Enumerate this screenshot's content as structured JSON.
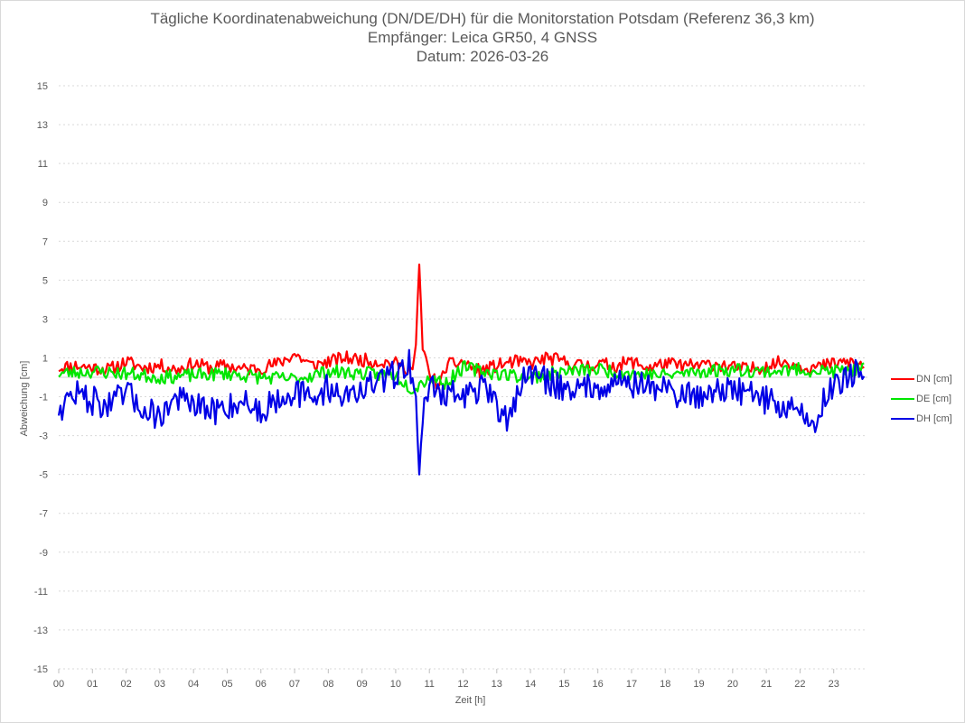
{
  "title_lines": [
    "Tägliche Koordinatenabweichung (DN/DE/DH) für die Monitorstation Potsdam (Referenz 36,3 km)",
    "Empfänger: Leica GR50, 4 GNSS",
    "Datum: 2026-03-26"
  ],
  "chart_data": {
    "type": "line",
    "title": "Tägliche Koordinatenabweichung (DN/DE/DH) für die Monitorstation Potsdam (Referenz 36,3 km)",
    "subtitle": [
      "Empfänger: Leica GR50, 4 GNSS",
      "Datum: 2026-03-26"
    ],
    "xlabel": "Zeit [h]",
    "ylabel": "Abweichung [cm]",
    "xlim": [
      0,
      24
    ],
    "ylim": [
      -15,
      15
    ],
    "x_ticks": [
      "00",
      "01",
      "02",
      "03",
      "04",
      "05",
      "06",
      "07",
      "08",
      "09",
      "10",
      "11",
      "12",
      "13",
      "14",
      "15",
      "16",
      "17",
      "18",
      "19",
      "20",
      "21",
      "22",
      "23"
    ],
    "y_ticks": [
      15,
      13,
      11,
      9,
      7,
      5,
      3,
      1,
      -1,
      -3,
      -5,
      -7,
      -9,
      -11,
      -13,
      -15
    ],
    "grid": true,
    "legend_position": "right",
    "x_step_hours": 0.05,
    "series": [
      {
        "name": "DN [cm]",
        "color": "#ff0000",
        "anchors": [
          [
            0,
            0.5
          ],
          [
            0.5,
            0.6
          ],
          [
            1,
            0.5
          ],
          [
            1.5,
            0.4
          ],
          [
            2,
            0.8
          ],
          [
            2.5,
            0.5
          ],
          [
            3,
            0.6
          ],
          [
            3.5,
            0.4
          ],
          [
            4,
            0.7
          ],
          [
            4.5,
            0.5
          ],
          [
            5,
            0.6
          ],
          [
            5.5,
            0.4
          ],
          [
            6,
            0.5
          ],
          [
            6.5,
            0.7
          ],
          [
            7,
            1.2
          ],
          [
            7.5,
            0.6
          ],
          [
            8,
            0.8
          ],
          [
            8.5,
            1.0
          ],
          [
            9,
            0.9
          ],
          [
            9.5,
            0.8
          ],
          [
            10,
            0.7
          ],
          [
            10.5,
            0.4
          ],
          [
            10.6,
            1.5
          ],
          [
            10.7,
            5.8
          ],
          [
            10.8,
            1.5
          ],
          [
            11,
            0.2
          ],
          [
            11.3,
            -0.5
          ],
          [
            11.5,
            0.6
          ],
          [
            12,
            0.8
          ],
          [
            12.5,
            0.3
          ],
          [
            13,
            0.6
          ],
          [
            13.5,
            0.8
          ],
          [
            14,
            0.7
          ],
          [
            14.5,
            1.0
          ],
          [
            15,
            0.8
          ],
          [
            15.5,
            0.6
          ],
          [
            16,
            0.7
          ],
          [
            16.5,
            0.6
          ],
          [
            17,
            0.8
          ],
          [
            17.5,
            0.5
          ],
          [
            18,
            0.7
          ],
          [
            18.5,
            0.6
          ],
          [
            19,
            0.6
          ],
          [
            19.5,
            0.7
          ],
          [
            20,
            0.5
          ],
          [
            20.5,
            0.4
          ],
          [
            21,
            0.6
          ],
          [
            21.5,
            0.8
          ],
          [
            22,
            0.6
          ],
          [
            22.5,
            0.5
          ],
          [
            23,
            0.7
          ],
          [
            23.5,
            0.8
          ],
          [
            23.9,
            0.6
          ]
        ],
        "noise": 0.35,
        "seed": 11
      },
      {
        "name": "DE [cm]",
        "color": "#00e600",
        "anchors": [
          [
            0,
            0.2
          ],
          [
            1,
            0.3
          ],
          [
            2,
            0.2
          ],
          [
            3,
            0.0
          ],
          [
            4,
            0.1
          ],
          [
            5,
            0.2
          ],
          [
            6,
            0.0
          ],
          [
            7,
            -0.1
          ],
          [
            8,
            0.3
          ],
          [
            9,
            0.2
          ],
          [
            10,
            0.1
          ],
          [
            10.5,
            -0.6
          ],
          [
            11,
            0.0
          ],
          [
            11.5,
            -0.3
          ],
          [
            12,
            0.5
          ],
          [
            13,
            0.2
          ],
          [
            14,
            0.0
          ],
          [
            15,
            0.3
          ],
          [
            16,
            0.4
          ],
          [
            17,
            0.2
          ],
          [
            18,
            0.1
          ],
          [
            19,
            0.3
          ],
          [
            20,
            0.4
          ],
          [
            21,
            0.3
          ],
          [
            22,
            0.4
          ],
          [
            23,
            0.3
          ],
          [
            23.9,
            0.4
          ]
        ],
        "noise": 0.35,
        "seed": 23
      },
      {
        "name": "DH [cm]",
        "color": "#0000e6",
        "anchors": [
          [
            0,
            -1.6
          ],
          [
            0.5,
            -0.8
          ],
          [
            1,
            -1.2
          ],
          [
            1.5,
            -1.5
          ],
          [
            2,
            -0.8
          ],
          [
            2.5,
            -1.6
          ],
          [
            3,
            -2.0
          ],
          [
            3.5,
            -1.0
          ],
          [
            4,
            -1.5
          ],
          [
            4.5,
            -1.8
          ],
          [
            5,
            -1.5
          ],
          [
            5.5,
            -1.2
          ],
          [
            6,
            -1.8
          ],
          [
            6.5,
            -1.0
          ],
          [
            7,
            -0.7
          ],
          [
            7.5,
            -1.2
          ],
          [
            8,
            -0.5
          ],
          [
            8.5,
            -1.0
          ],
          [
            9,
            -0.6
          ],
          [
            9.5,
            -0.3
          ],
          [
            10,
            0.2
          ],
          [
            10.4,
            0.8
          ],
          [
            10.6,
            -1.0
          ],
          [
            10.7,
            -5.0
          ],
          [
            10.8,
            -2.0
          ],
          [
            11,
            -0.4
          ],
          [
            11.5,
            -0.8
          ],
          [
            12,
            -1.0
          ],
          [
            12.5,
            -0.5
          ],
          [
            13,
            -1.5
          ],
          [
            13.3,
            -2.2
          ],
          [
            13.6,
            -0.8
          ],
          [
            14,
            0.3
          ],
          [
            14.5,
            -0.2
          ],
          [
            15,
            -0.5
          ],
          [
            15.5,
            -0.6
          ],
          [
            16,
            -0.4
          ],
          [
            16.5,
            -0.2
          ],
          [
            17,
            -0.3
          ],
          [
            17.5,
            -0.5
          ],
          [
            18,
            -0.6
          ],
          [
            18.5,
            -0.9
          ],
          [
            19,
            -1.0
          ],
          [
            19.5,
            -0.5
          ],
          [
            20,
            -0.8
          ],
          [
            20.5,
            -0.6
          ],
          [
            21,
            -1.2
          ],
          [
            21.5,
            -1.5
          ],
          [
            22,
            -1.7
          ],
          [
            22.4,
            -2.6
          ],
          [
            22.7,
            -1.2
          ],
          [
            23,
            -0.3
          ],
          [
            23.5,
            0.2
          ],
          [
            23.9,
            0.2
          ]
        ],
        "noise": 0.75,
        "seed": 47
      }
    ]
  }
}
